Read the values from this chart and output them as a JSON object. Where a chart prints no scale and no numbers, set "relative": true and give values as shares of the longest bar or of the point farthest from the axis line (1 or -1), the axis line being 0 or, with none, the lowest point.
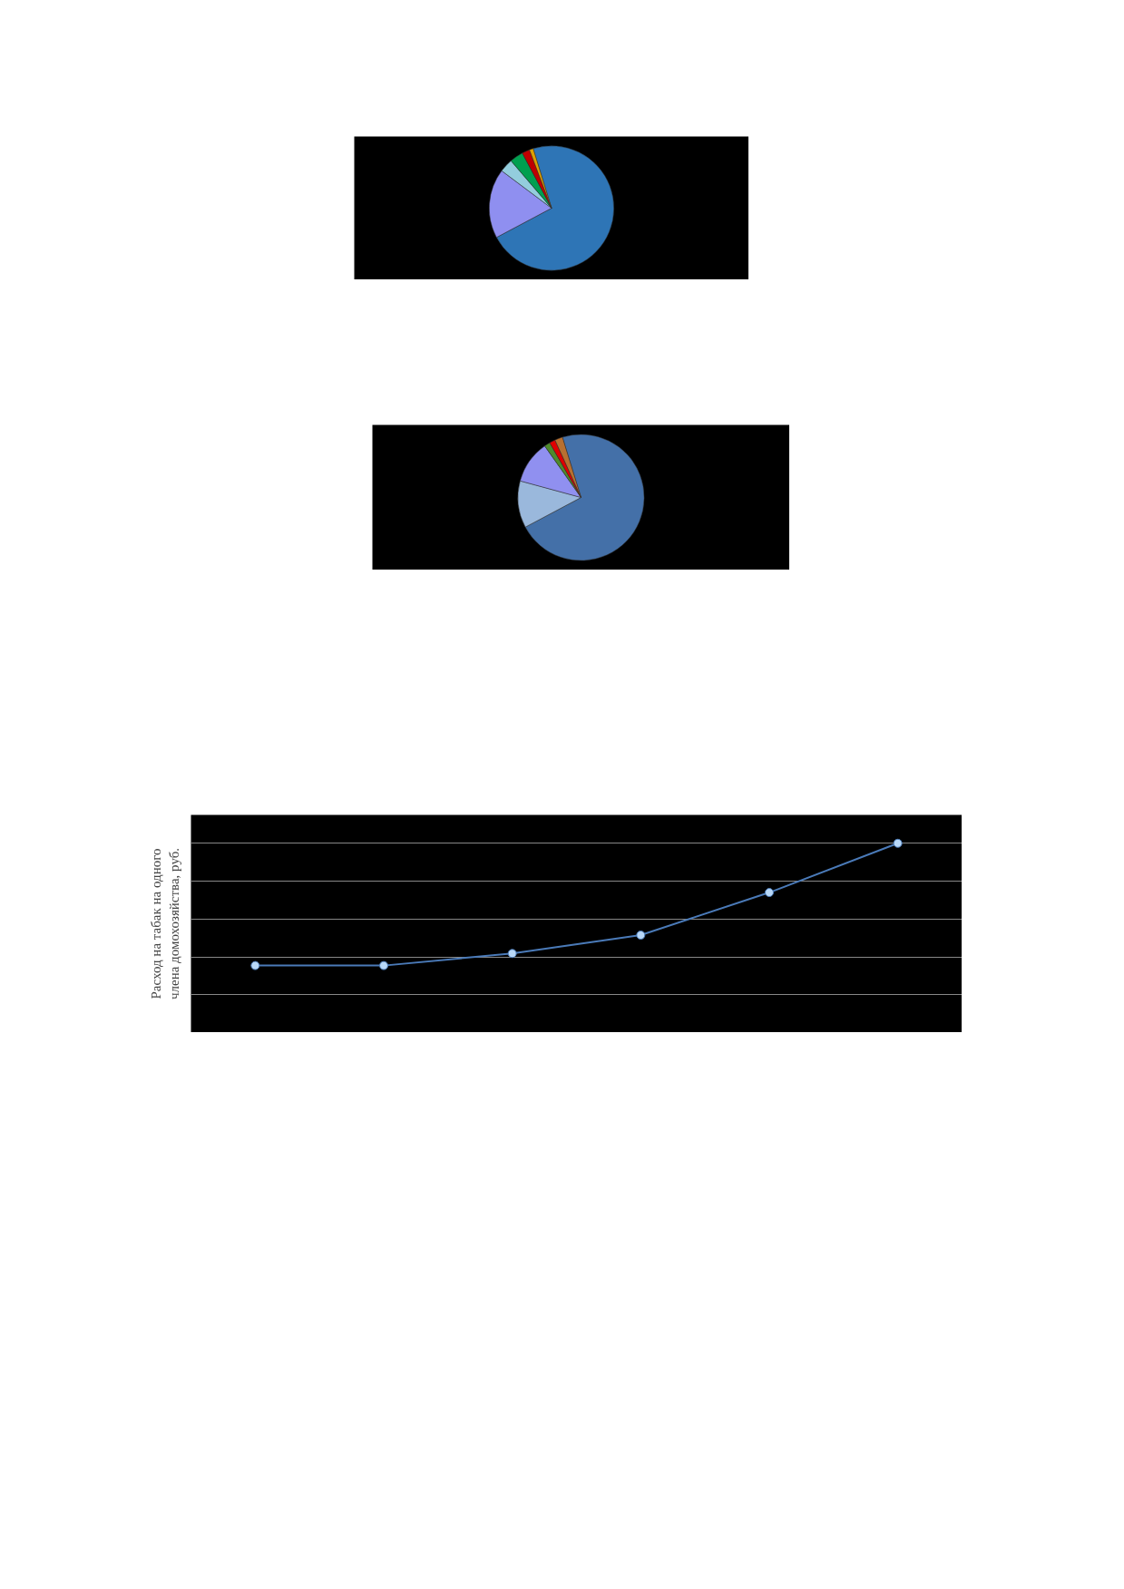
{
  "chart_data": [
    {
      "type": "pie",
      "categories": [
        null,
        null,
        null,
        null,
        null,
        null
      ],
      "values": [
        72,
        18,
        3.5,
        3.5,
        2,
        1
      ],
      "colors": [
        "#2e75b6",
        "#8f8ff0",
        "#93cddd",
        "#00a050",
        "#c00000",
        "#e0a000"
      ]
    },
    {
      "type": "pie",
      "categories": [
        null,
        null,
        null,
        null,
        null,
        null
      ],
      "values": [
        72,
        12,
        11,
        1.5,
        1.5,
        2
      ],
      "colors": [
        "#4470a8",
        "#9ab8dc",
        "#9090f0",
        "#4f8a2c",
        "#e00000",
        "#b87030"
      ]
    },
    {
      "type": "line",
      "ylabel": "Расход на табак на одного члена домохозяйства, руб.",
      "categories": [
        null,
        null,
        null,
        null,
        null,
        null
      ],
      "relative": true,
      "grid": "y",
      "marker": "circle",
      "tick_labels": false,
      "series": [
        {
          "color": "#4a7ab8",
          "values": [
            0.354,
            0.354,
            0.418,
            0.515,
            0.74,
            1
          ]
        }
      ]
    }
  ]
}
